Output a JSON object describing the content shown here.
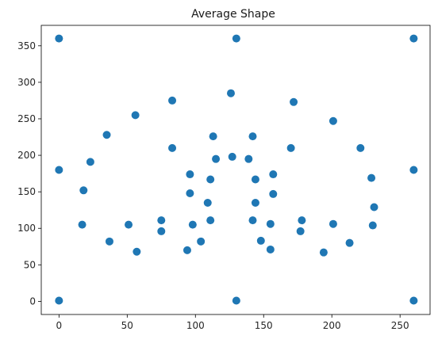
{
  "chart_data": {
    "type": "scatter",
    "title": "Average Shape",
    "xlabel": "",
    "ylabel": "",
    "xlim": [
      -13,
      272
    ],
    "ylim": [
      -18,
      378
    ],
    "xticks": [
      0,
      50,
      100,
      150,
      200,
      250
    ],
    "yticks": [
      0,
      50,
      100,
      150,
      200,
      250,
      300,
      350
    ],
    "grid": false,
    "color": "#1f77b4",
    "points": [
      {
        "x": 0,
        "y": 360
      },
      {
        "x": 130,
        "y": 360
      },
      {
        "x": 260,
        "y": 360
      },
      {
        "x": 0,
        "y": 180
      },
      {
        "x": 260,
        "y": 180
      },
      {
        "x": 0,
        "y": 1
      },
      {
        "x": 130,
        "y": 1
      },
      {
        "x": 260,
        "y": 1
      },
      {
        "x": 126,
        "y": 285
      },
      {
        "x": 83,
        "y": 275
      },
      {
        "x": 172,
        "y": 273
      },
      {
        "x": 56,
        "y": 255
      },
      {
        "x": 201,
        "y": 247
      },
      {
        "x": 35,
        "y": 228
      },
      {
        "x": 113,
        "y": 226
      },
      {
        "x": 142,
        "y": 226
      },
      {
        "x": 83,
        "y": 210
      },
      {
        "x": 170,
        "y": 210
      },
      {
        "x": 221,
        "y": 210
      },
      {
        "x": 23,
        "y": 191
      },
      {
        "x": 127,
        "y": 198
      },
      {
        "x": 139,
        "y": 195
      },
      {
        "x": 115,
        "y": 195
      },
      {
        "x": 96,
        "y": 174
      },
      {
        "x": 157,
        "y": 174
      },
      {
        "x": 229,
        "y": 169
      },
      {
        "x": 111,
        "y": 167
      },
      {
        "x": 144,
        "y": 167
      },
      {
        "x": 18,
        "y": 152
      },
      {
        "x": 96,
        "y": 148
      },
      {
        "x": 157,
        "y": 147
      },
      {
        "x": 109,
        "y": 135
      },
      {
        "x": 144,
        "y": 135
      },
      {
        "x": 231,
        "y": 129
      },
      {
        "x": 75,
        "y": 111
      },
      {
        "x": 111,
        "y": 111
      },
      {
        "x": 142,
        "y": 111
      },
      {
        "x": 178,
        "y": 111
      },
      {
        "x": 17,
        "y": 105
      },
      {
        "x": 51,
        "y": 105
      },
      {
        "x": 98,
        "y": 105
      },
      {
        "x": 155,
        "y": 106
      },
      {
        "x": 201,
        "y": 106
      },
      {
        "x": 230,
        "y": 104
      },
      {
        "x": 75,
        "y": 96
      },
      {
        "x": 177,
        "y": 96
      },
      {
        "x": 37,
        "y": 82
      },
      {
        "x": 104,
        "y": 82
      },
      {
        "x": 148,
        "y": 83
      },
      {
        "x": 213,
        "y": 80
      },
      {
        "x": 57,
        "y": 68
      },
      {
        "x": 94,
        "y": 70
      },
      {
        "x": 155,
        "y": 71
      },
      {
        "x": 194,
        "y": 67
      }
    ]
  }
}
